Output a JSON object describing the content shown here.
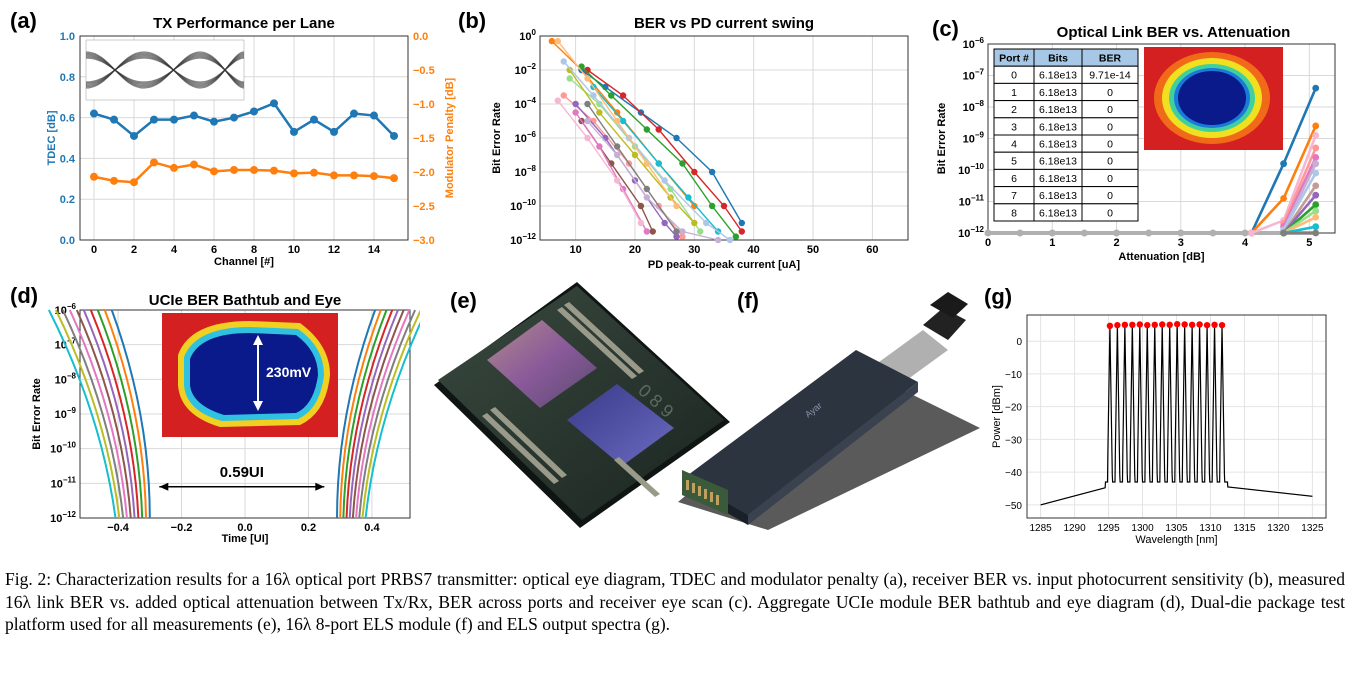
{
  "panel_labels": {
    "a": "(a)",
    "b": "(b)",
    "c": "(c)",
    "d": "(d)",
    "e": "(e)",
    "f": "(f)",
    "g": "(g)"
  },
  "caption": "Fig. 2: Characterization results for a 16λ optical port PRBS7 transmitter: optical eye diagram, TDEC and modulator penalty (a), receiver BER vs. input photocurrent sensitivity (b), measured 16λ link BER vs. added optical attenuation between Tx/Rx, BER across ports and receiver eye scan (c). Aggregate UCIe module BER bathtub and eye diagram (d), Dual-die package test platform used for all measurements (e), 16λ 8-port ELS module (f) and ELS output spectra (g).",
  "colors": {
    "blue": "#1f77b4",
    "orange": "#ff7f0e",
    "grid": "#d9d9d9",
    "table_header": "#a6c8e6"
  },
  "chart_data": [
    {
      "id": "a",
      "type": "line",
      "title": "TX Performance per Lane",
      "xlabel": "Channel [#]",
      "ylabel": "TDEC [dB]",
      "y2label": "Modulator Penalty [dB]",
      "xlim": [
        -0.7,
        15.7
      ],
      "ylim": [
        0,
        1
      ],
      "y2lim": [
        -3,
        0
      ],
      "xticks": [
        0,
        2,
        4,
        6,
        8,
        10,
        12,
        14
      ],
      "yticks": [
        "0.0",
        "0.2",
        "0.4",
        "0.6",
        "0.8",
        "1.0"
      ],
      "y2ticks": [
        "0.0",
        "−0.5",
        "−1.0",
        "−1.5",
        "−2.0",
        "−2.5",
        "−3.0"
      ],
      "x": [
        0,
        1,
        2,
        3,
        4,
        5,
        6,
        7,
        8,
        9,
        10,
        11,
        12,
        13,
        14,
        15
      ],
      "series": [
        {
          "axis": "left",
          "color": "blue",
          "values": [
            0.62,
            0.59,
            0.51,
            0.59,
            0.59,
            0.61,
            0.58,
            0.6,
            0.63,
            0.67,
            0.53,
            0.59,
            0.53,
            0.62,
            0.61,
            0.51
          ]
        },
        {
          "axis": "right",
          "color": "orange",
          "values": [
            -2.07,
            -2.13,
            -2.15,
            -1.86,
            -1.94,
            -1.89,
            -1.99,
            -1.97,
            -1.97,
            -1.98,
            -2.02,
            -2.01,
            -2.05,
            -2.05,
            -2.06,
            -2.09
          ]
        }
      ]
    },
    {
      "id": "b",
      "type": "line",
      "title": "BER vs PD current swing",
      "xlabel": "PD peak-to-peak current [uA]",
      "ylabel": "Bit Error Rate",
      "xlim": [
        4,
        66
      ],
      "ylim_log10": [
        -12,
        0
      ],
      "xticks": [
        10,
        20,
        30,
        40,
        50,
        60
      ],
      "yticks_exp": [
        0,
        -2,
        -4,
        -6,
        -8,
        -10,
        -12
      ],
      "series": [
        {
          "color": "#ff7f0e",
          "points": [
            [
              6,
              -0.3
            ],
            [
              11,
              -2
            ],
            [
              17,
              -4.5
            ],
            [
              24,
              -7.5
            ],
            [
              30,
              -10
            ]
          ]
        },
        {
          "color": "#1f77b4",
          "points": [
            [
              11,
              -2
            ],
            [
              15,
              -3
            ],
            [
              21,
              -4.5
            ],
            [
              27,
              -6
            ],
            [
              33,
              -8
            ],
            [
              38,
              -11
            ]
          ]
        },
        {
          "color": "#d62728",
          "points": [
            [
              12,
              -2
            ],
            [
              18,
              -3.5
            ],
            [
              24,
              -5.5
            ],
            [
              30,
              -8
            ],
            [
              35,
              -10
            ],
            [
              38,
              -11.5
            ]
          ]
        },
        {
          "color": "#2ca02c",
          "points": [
            [
              11,
              -1.8
            ],
            [
              16,
              -3.5
            ],
            [
              22,
              -5.5
            ],
            [
              28,
              -7.5
            ],
            [
              33,
              -10
            ],
            [
              37,
              -11.8
            ]
          ]
        },
        {
          "color": "#98df8a",
          "points": [
            [
              9,
              -2.5
            ],
            [
              14,
              -4
            ],
            [
              20,
              -6.5
            ],
            [
              26,
              -9
            ],
            [
              31,
              -11.5
            ]
          ]
        },
        {
          "color": "#ff9896",
          "points": [
            [
              8,
              -3.5
            ],
            [
              13,
              -5
            ],
            [
              19,
              -7.5
            ],
            [
              24,
              -10
            ],
            [
              28,
              -11.8
            ]
          ]
        },
        {
          "color": "#9467bd",
          "points": [
            [
              10,
              -4
            ],
            [
              15,
              -6
            ],
            [
              20,
              -8.5
            ],
            [
              25,
              -11
            ],
            [
              27,
              -11.8
            ]
          ]
        },
        {
          "color": "#8c564b",
          "points": [
            [
              11,
              -5
            ],
            [
              16,
              -7.5
            ],
            [
              21,
              -10
            ],
            [
              23,
              -11.5
            ]
          ]
        },
        {
          "color": "#e377c2",
          "points": [
            [
              10,
              -4.5
            ],
            [
              14,
              -6.5
            ],
            [
              18,
              -9
            ],
            [
              22,
              -11.5
            ]
          ]
        },
        {
          "color": "#c5b0d5",
          "points": [
            [
              12,
              -5
            ],
            [
              17,
              -7
            ],
            [
              22,
              -9.5
            ],
            [
              28,
              -11.5
            ],
            [
              34,
              -12
            ]
          ]
        },
        {
          "color": "#bcbd22",
          "points": [
            [
              9,
              -2
            ],
            [
              14,
              -4.5
            ],
            [
              20,
              -7
            ],
            [
              26,
              -9.5
            ],
            [
              30,
              -11
            ]
          ]
        },
        {
          "color": "#17becf",
          "points": [
            [
              13,
              -3
            ],
            [
              18,
              -5
            ],
            [
              24,
              -7.5
            ],
            [
              29,
              -9.5
            ],
            [
              34,
              -11.5
            ]
          ]
        },
        {
          "color": "#f7b6d2",
          "points": [
            [
              7,
              -3.8
            ],
            [
              12,
              -6
            ],
            [
              17,
              -8.5
            ],
            [
              21,
              -11
            ]
          ]
        },
        {
          "color": "#aec7e8",
          "points": [
            [
              8,
              -1.5
            ],
            [
              13,
              -3.5
            ],
            [
              19,
              -6
            ],
            [
              25,
              -8.5
            ],
            [
              32,
              -11
            ],
            [
              36,
              -12
            ]
          ]
        },
        {
          "color": "#ffbb78",
          "points": [
            [
              7,
              -0.3
            ],
            [
              12,
              -2.5
            ],
            [
              17,
              -5
            ],
            [
              22,
              -7.5
            ],
            [
              27,
              -10
            ]
          ]
        },
        {
          "color": "#7f7f7f",
          "points": [
            [
              12,
              -4
            ],
            [
              17,
              -6.5
            ],
            [
              22,
              -9
            ],
            [
              27,
              -11.5
            ]
          ]
        }
      ]
    },
    {
      "id": "c",
      "type": "line",
      "title": "Optical Link BER vs. Attenuation",
      "xlabel": "Attenuation [dB]",
      "ylabel": "Bit Error Rate",
      "xlim": [
        0,
        5.4
      ],
      "ylim_log10": [
        -12,
        -6
      ],
      "xticks": [
        0,
        1,
        2,
        3,
        4,
        5
      ],
      "yticks_exp": [
        -6,
        -7,
        -8,
        -9,
        -10,
        -11,
        -12
      ],
      "floor_points_x": [
        0,
        0.5,
        1,
        1.5,
        2,
        2.5,
        3,
        3.5,
        4,
        4.6
      ],
      "series": [
        {
          "color": "#1f77b4",
          "points": [
            [
              4.1,
              -12
            ],
            [
              4.6,
              -9.8
            ],
            [
              5.1,
              -7.4
            ]
          ]
        },
        {
          "color": "#ff7f0e",
          "points": [
            [
              4.1,
              -12
            ],
            [
              4.6,
              -10.9
            ],
            [
              5.1,
              -8.6
            ]
          ]
        },
        {
          "color": "#f7b6d2",
          "points": [
            [
              4.1,
              -12
            ],
            [
              4.6,
              -11.6
            ],
            [
              5.1,
              -8.9
            ]
          ]
        },
        {
          "color": "#ff9896",
          "points": [
            [
              4.6,
              -11.7
            ],
            [
              5.1,
              -9.3
            ]
          ]
        },
        {
          "color": "#e377c2",
          "points": [
            [
              4.6,
              -11.8
            ],
            [
              5.1,
              -9.6
            ]
          ]
        },
        {
          "color": "#c5b0d5",
          "points": [
            [
              4.6,
              -11.9
            ],
            [
              5.1,
              -9.8
            ]
          ]
        },
        {
          "color": "#aec7e8",
          "points": [
            [
              4.6,
              -11.9
            ],
            [
              5.1,
              -10.1
            ]
          ]
        },
        {
          "color": "#c49c94",
          "points": [
            [
              4.6,
              -12
            ],
            [
              5.1,
              -10.5
            ]
          ]
        },
        {
          "color": "#9467bd",
          "points": [
            [
              4.6,
              -12
            ],
            [
              5.1,
              -10.8
            ]
          ]
        },
        {
          "color": "#2ca02c",
          "points": [
            [
              4.6,
              -12
            ],
            [
              5.1,
              -11.1
            ]
          ]
        },
        {
          "color": "#98df8a",
          "points": [
            [
              4.6,
              -12
            ],
            [
              5.1,
              -11.3
            ]
          ]
        },
        {
          "color": "#ffbb78",
          "points": [
            [
              4.6,
              -12
            ],
            [
              5.1,
              -11.5
            ]
          ]
        },
        {
          "color": "#17becf",
          "points": [
            [
              4.6,
              -12
            ],
            [
              5.1,
              -11.8
            ]
          ]
        },
        {
          "color": "#7f7f7f",
          "points": [
            [
              4.6,
              -12
            ],
            [
              5.1,
              -12
            ]
          ]
        }
      ],
      "table": {
        "headers": [
          "Port #",
          "Bits",
          "BER"
        ],
        "rows": [
          [
            "0",
            "6.18e13",
            "9.71e-14"
          ],
          [
            "1",
            "6.18e13",
            "0"
          ],
          [
            "2",
            "6.18e13",
            "0"
          ],
          [
            "3",
            "6.18e13",
            "0"
          ],
          [
            "4",
            "6.18e13",
            "0"
          ],
          [
            "5",
            "6.18e13",
            "0"
          ],
          [
            "6",
            "6.18e13",
            "0"
          ],
          [
            "7",
            "6.18e13",
            "0"
          ],
          [
            "8",
            "6.18e13",
            "0"
          ]
        ]
      }
    },
    {
      "id": "d",
      "type": "line",
      "title": "UCIe BER Bathtub and Eye",
      "xlabel": "Time [UI]",
      "ylabel": "Bit Error Rate",
      "xlim": [
        -0.52,
        0.52
      ],
      "ylim_log10": [
        -12,
        -6
      ],
      "xticks": [
        "−0.4",
        "−0.2",
        "0.0",
        "0.2",
        "0.4"
      ],
      "xtick_values": [
        -0.4,
        -0.2,
        0,
        0.2,
        0.4
      ],
      "yticks_exp": [
        -6,
        -7,
        -8,
        -9,
        -10,
        -11,
        -12
      ],
      "eye_height": "230mV",
      "eye_width": "0.59UI",
      "curve_colors": [
        "#1f77b4",
        "#ff7f0e",
        "#2ca02c",
        "#d62728",
        "#9467bd",
        "#8c564b",
        "#e377c2",
        "#7f7f7f",
        "#bcbd22",
        "#17becf"
      ]
    },
    {
      "id": "g",
      "type": "line",
      "xlabel": "Wavelength [nm]",
      "ylabel": "Power [dBm]",
      "xlim": [
        1283,
        1327
      ],
      "ylim": [
        -54,
        8
      ],
      "xticks": [
        1285,
        1290,
        1295,
        1300,
        1305,
        1310,
        1315,
        1320,
        1325
      ],
      "yticks": [
        "0",
        "−10",
        "−20",
        "−30",
        "−40",
        "−50"
      ],
      "ytick_values": [
        0,
        -10,
        -20,
        -30,
        -40,
        -50
      ],
      "peak_wavelengths": [
        1295.2,
        1296.3,
        1297.4,
        1298.5,
        1299.6,
        1300.7,
        1301.8,
        1302.9,
        1304.0,
        1305.1,
        1306.2,
        1307.3,
        1308.4,
        1309.5,
        1310.6,
        1311.7
      ],
      "peak_powers": [
        4.7,
        4.9,
        5.0,
        5.0,
        5.1,
        4.9,
        5.0,
        5.1,
        5.0,
        5.2,
        5.1,
        5.0,
        5.1,
        4.9,
        5.0,
        4.9
      ],
      "peak_color": "#ff0000"
    }
  ]
}
